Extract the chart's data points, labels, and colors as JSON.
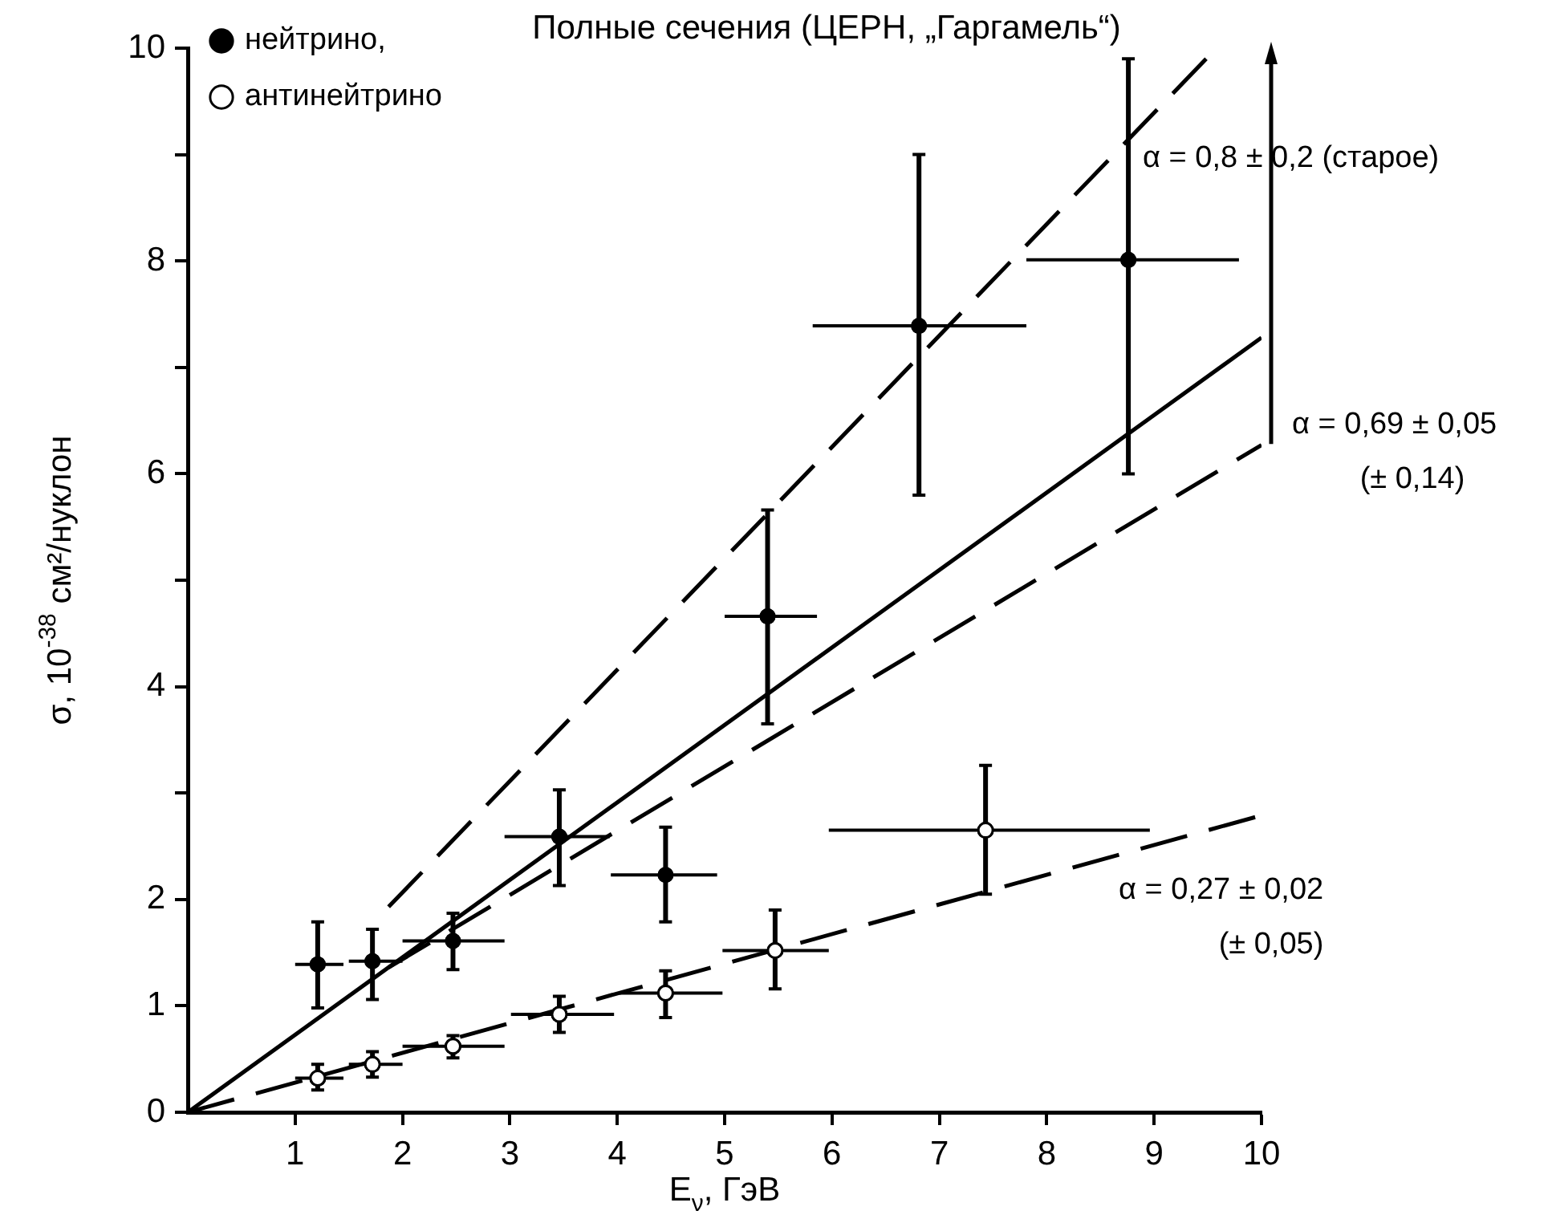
{
  "chart_data": {
    "type": "scatter",
    "title": "Полные сечения (ЦЕРН, „Гаргамель“)",
    "xlabel": "E$_{ν}$, ГэВ",
    "ylabel": "σ, 10$^{-38}$ см²/нуклон",
    "xlim": [
      0,
      10
    ],
    "xticks": [
      1,
      2,
      3,
      4,
      5,
      6,
      7,
      8,
      9,
      10
    ],
    "ylim": [
      0,
      10
    ],
    "yticks": [
      0,
      1,
      2,
      {
        "value": 3,
        "label": null
      },
      4,
      {
        "value": 5,
        "label": null
      },
      6,
      {
        "value": 7,
        "label": null
      },
      8,
      {
        "value": 9,
        "label": null
      },
      10
    ],
    "legend": "top left",
    "marker": "circle",
    "series": [
      {
        "name": "нейтрино,",
        "type": "scatter",
        "color": "#000000",
        "x": [
          1.21,
          1.72,
          2.47,
          3.46,
          4.45,
          5.4,
          6.81,
          8.76
        ],
        "values": [
          1.39,
          1.42,
          1.61,
          2.59,
          2.23,
          4.66,
          7.39,
          8.01
        ],
        "errors": [
          [
            0.98,
            1.79
          ],
          [
            1.06,
            1.72
          ],
          [
            1.34,
            1.87
          ],
          [
            2.13,
            3.03
          ],
          [
            1.79,
            2.68
          ],
          [
            3.65,
            5.66
          ],
          [
            5.8,
            9.0
          ],
          [
            6.0,
            9.9
          ]
        ],
        "xerrors": [
          [
            1.0,
            1.45
          ],
          [
            1.5,
            2.0
          ],
          [
            2.0,
            2.95
          ],
          [
            2.95,
            3.93
          ],
          [
            3.94,
            4.93
          ],
          [
            5.0,
            5.86
          ],
          [
            5.82,
            7.81
          ],
          [
            7.81,
            9.79
          ]
        ]
      },
      {
        "name": "антинейтрино",
        "type": "scatter",
        "color": "#ffffff",
        "x": [
          1.21,
          1.72,
          2.47,
          3.46,
          4.45,
          5.47,
          7.43
        ],
        "values": [
          0.32,
          0.45,
          0.62,
          0.92,
          1.12,
          1.52,
          2.65
        ],
        "errors": [
          [
            0.21,
            0.45
          ],
          [
            0.33,
            0.57
          ],
          [
            0.51,
            0.72
          ],
          [
            0.75,
            1.09
          ],
          [
            0.89,
            1.33
          ],
          [
            1.16,
            1.9
          ],
          [
            2.05,
            3.26
          ]
        ],
        "xerrors": [
          [
            1.0,
            1.45
          ],
          [
            1.5,
            2.0
          ],
          [
            2.0,
            2.95
          ],
          [
            3.01,
            3.97
          ],
          [
            4.02,
            4.98
          ],
          [
            4.98,
            5.97
          ],
          [
            5.97,
            8.96
          ]
        ]
      },
      {
        "type": "line",
        "color": "#000000",
        "marker": "none",
        "line_style": "dashed",
        "x": [
          1.87,
          9.58
        ],
        "values": [
          1.93,
          10
        ]
      },
      {
        "type": "line",
        "color": "#000000",
        "marker": "none",
        "line_style": "solid",
        "x": [
          0,
          10
        ],
        "values": [
          0,
          7.28
        ]
      },
      {
        "type": "line",
        "color": "#000000",
        "marker": "none",
        "line_style": "dashed",
        "x": [
          1.87,
          10
        ],
        "values": [
          1.36,
          6.27
        ]
      },
      {
        "type": "line",
        "color": "#000000",
        "marker": "none",
        "line_style": "dashed",
        "x": [
          0,
          10
        ],
        "values": [
          0,
          2.79
        ]
      }
    ],
    "annotations": [
      "α = 0,8 ± 0,2 (старое)",
      "α = 0,69 ± 0,05",
      "(± 0,14)",
      "α = 0,27 ± 0,02",
      "(± 0,05)"
    ]
  }
}
